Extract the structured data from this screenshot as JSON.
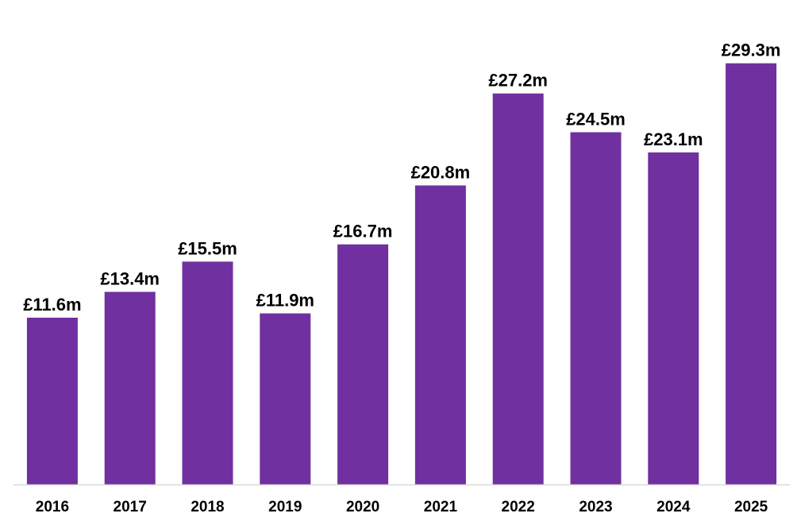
{
  "colors": {
    "bar": "#7030a0",
    "axis": "#d9d9d9",
    "text": "#000000"
  },
  "chart_data": {
    "type": "bar",
    "title": "",
    "xlabel": "",
    "ylabel": "",
    "ylim": [
      0,
      30.3
    ],
    "grid": false,
    "legend": "none",
    "categories": [
      "2016",
      "2017",
      "2018",
      "2019",
      "2020",
      "2021",
      "2022",
      "2023",
      "2024",
      "2025"
    ],
    "values": [
      11.6,
      13.4,
      15.5,
      11.9,
      16.7,
      20.8,
      27.2,
      24.5,
      23.1,
      29.3
    ],
    "data_labels": [
      "£11.6m",
      "£13.4m",
      "£15.5m",
      "£11.9m",
      "£16.7m",
      "£20.8m",
      "£27.2m",
      "£24.5m",
      "£23.1m",
      "£29.3m"
    ]
  }
}
